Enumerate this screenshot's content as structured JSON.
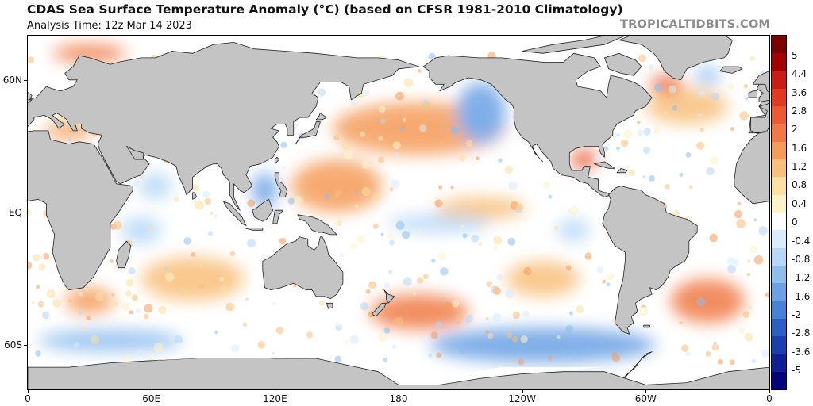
{
  "header": {
    "title": "CDAS Sea Surface Temperature Anomaly (°C) (based on CFSR 1981-2010 Climatology)",
    "analysis_time": "Analysis Time: 12z Mar 14 2023",
    "source": "TROPICALTIDBITS.COM"
  },
  "map": {
    "lon_range": [
      0,
      360
    ],
    "lat_range": [
      -80,
      80
    ],
    "lat_labels": [
      {
        "text": "60N",
        "lat": 60
      },
      {
        "text": "EQ",
        "lat": 0
      },
      {
        "text": "60S",
        "lat": -60
      }
    ],
    "lon_labels": [
      {
        "text": "0",
        "lon": 0
      },
      {
        "text": "60E",
        "lon": 60
      },
      {
        "text": "120E",
        "lon": 120
      },
      {
        "text": "180",
        "lon": 180
      },
      {
        "text": "120W",
        "lon": 240
      },
      {
        "text": "60W",
        "lon": 300
      },
      {
        "text": "0",
        "lon": 360
      }
    ],
    "land_color": "#c4c4c4",
    "ice_color": "#ffffff",
    "ocean_neutral_color": "#ffffff"
  },
  "colorbar": {
    "ticks": [
      {
        "label": "5",
        "value": 5
      },
      {
        "label": "4.4",
        "value": 4.4
      },
      {
        "label": "3.6",
        "value": 3.6
      },
      {
        "label": "2.8",
        "value": 2.8
      },
      {
        "label": "2",
        "value": 2
      },
      {
        "label": "1.6",
        "value": 1.6
      },
      {
        "label": "1.2",
        "value": 1.2
      },
      {
        "label": "0.8",
        "value": 0.8
      },
      {
        "label": "0.4",
        "value": 0.4
      },
      {
        "label": "0",
        "value": 0
      },
      {
        "label": "-0.4",
        "value": -0.4
      },
      {
        "label": "-0.8",
        "value": -0.8
      },
      {
        "label": "-1.2",
        "value": -1.2
      },
      {
        "label": "-1.6",
        "value": -1.6
      },
      {
        "label": "-2",
        "value": -2
      },
      {
        "label": "-2.8",
        "value": -2.8
      },
      {
        "label": "-3.6",
        "value": -3.6
      },
      {
        "label": "-5",
        "value": -5
      }
    ],
    "colors": [
      "#7a0000",
      "#a30000",
      "#c81e12",
      "#de3b22",
      "#ea5a34",
      "#f07a45",
      "#f59c5a",
      "#f8c07c",
      "#fbe1a2",
      "#fdf3c8",
      "#ffffff",
      "#d9ecfb",
      "#b6d7f6",
      "#8fbdee",
      "#6aa1e4",
      "#4682d8",
      "#2c5fc6",
      "#1c3fae",
      "#101f93",
      "#05037a"
    ]
  },
  "anomaly_regions": [
    {
      "name": "north-pacific-warm",
      "lon": 190,
      "lat": 38,
      "rx": 42,
      "ry": 12,
      "anomaly": 1.4
    },
    {
      "name": "western-pacific-warm",
      "lon": 150,
      "lat": 12,
      "rx": 22,
      "ry": 12,
      "anomaly": 1.3
    },
    {
      "name": "south-pacific-warm",
      "lon": 190,
      "lat": -45,
      "rx": 24,
      "ry": 8,
      "anomaly": 1.8
    },
    {
      "name": "south-atlantic-warm",
      "lon": 330,
      "lat": -40,
      "rx": 18,
      "ry": 10,
      "anomaly": 1.6
    },
    {
      "name": "gulf-of-mexico-warm",
      "lon": 270,
      "lat": 24,
      "rx": 6,
      "ry": 5,
      "anomaly": 2.2
    },
    {
      "name": "east-pacific-warm",
      "lon": 220,
      "lat": 2,
      "rx": 22,
      "ry": 5,
      "anomaly": 1.0
    },
    {
      "name": "southeast-pacific-warm",
      "lon": 250,
      "lat": -30,
      "rx": 18,
      "ry": 8,
      "anomaly": 1.1
    },
    {
      "name": "north-atlantic-warm",
      "lon": 320,
      "lat": 48,
      "rx": 20,
      "ry": 8,
      "anomaly": 0.9
    },
    {
      "name": "labrador-warm",
      "lon": 310,
      "lat": 58,
      "rx": 8,
      "ry": 4,
      "anomaly": 2.0
    },
    {
      "name": "mediterranean-warm",
      "lon": 20,
      "lat": 37,
      "rx": 12,
      "ry": 4,
      "anomaly": 1.5
    },
    {
      "name": "barents-warm",
      "lon": 30,
      "lat": 72,
      "rx": 18,
      "ry": 4,
      "anomaly": 1.8
    },
    {
      "name": "south-indian-warm",
      "lon": 80,
      "lat": -30,
      "rx": 25,
      "ry": 10,
      "anomaly": 0.9
    },
    {
      "name": "southwest-indian-warm",
      "lon": 30,
      "lat": -40,
      "rx": 12,
      "ry": 6,
      "anomaly": 1.5
    },
    {
      "name": "equatorial-pacific-cool",
      "lon": 200,
      "lat": -5,
      "rx": 25,
      "ry": 4,
      "anomaly": -0.5
    },
    {
      "name": "northeast-pacific-cool",
      "lon": 220,
      "lat": 45,
      "rx": 12,
      "ry": 14,
      "anomaly": -1.5
    },
    {
      "name": "south-china-sea-cool",
      "lon": 115,
      "lat": 10,
      "rx": 6,
      "ry": 8,
      "anomaly": -1.5
    },
    {
      "name": "southern-ocean-cool",
      "lon": 250,
      "lat": -60,
      "rx": 55,
      "ry": 8,
      "anomaly": -1.3
    },
    {
      "name": "southern-indian-cool",
      "lon": 40,
      "lat": -58,
      "rx": 35,
      "ry": 5,
      "anomaly": -1.0
    },
    {
      "name": "peru-cool",
      "lon": 265,
      "lat": -8,
      "rx": 8,
      "ry": 5,
      "anomaly": -0.6
    },
    {
      "name": "arabian-sea-cool",
      "lon": 62,
      "lat": 12,
      "rx": 8,
      "ry": 6,
      "anomaly": -0.5
    },
    {
      "name": "western-indian-cool",
      "lon": 55,
      "lat": -8,
      "rx": 10,
      "ry": 6,
      "anomaly": -0.7
    },
    {
      "name": "north-atlantic-cool",
      "lon": 330,
      "lat": 62,
      "rx": 6,
      "ry": 4,
      "anomaly": -1.0
    }
  ]
}
